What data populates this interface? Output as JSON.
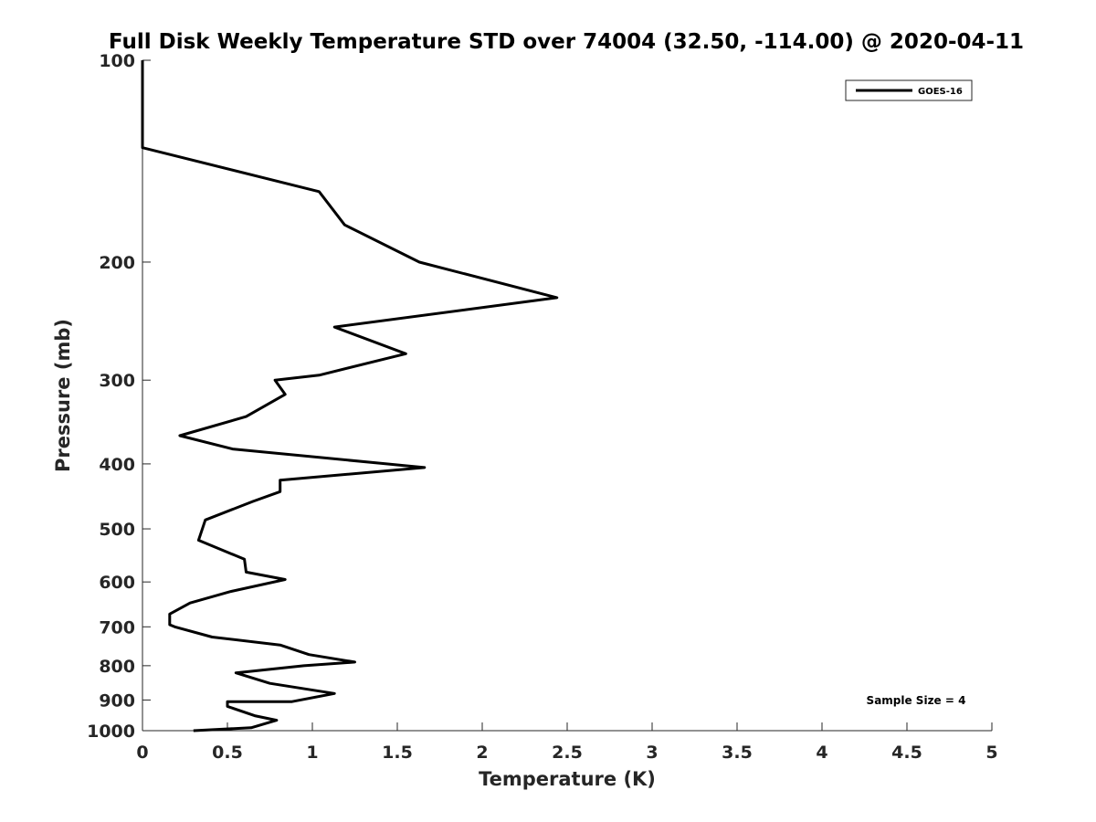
{
  "chart_data": {
    "type": "line",
    "title": "Full Disk Weekly Temperature STD over 74004 (32.50, -114.00) @ 2020-04-11",
    "xlabel": "Temperature (K)",
    "ylabel": "Pressure (mb)",
    "xlim": [
      0,
      5
    ],
    "ylim": [
      100,
      1000
    ],
    "y_scale": "log",
    "y_reversed": true,
    "grid": false,
    "legend_position": "top-right",
    "x_ticks": [
      "0",
      "0.5",
      "1",
      "1.5",
      "2",
      "2.5",
      "3",
      "3.5",
      "4",
      "4.5",
      "5"
    ],
    "y_ticks": [
      "100",
      "200",
      "300",
      "400",
      "500",
      "600",
      "700",
      "800",
      "900",
      "1000"
    ],
    "series": [
      {
        "name": "GOES-16",
        "color": "#000000",
        "x": [
          0,
          0,
          1.04,
          1.19,
          1.63,
          2.44,
          1.13,
          1.55,
          1.04,
          0.78,
          0.84,
          0.61,
          0.22,
          0.53,
          1.66,
          0.81,
          0.81,
          0.65,
          0.37,
          0.33,
          0.6,
          0.61,
          0.84,
          0.52,
          0.28,
          0.16,
          0.16,
          0.19,
          0.41,
          0.81,
          0.98,
          1.25,
          0.95,
          0.55,
          0.75,
          1.13,
          0.88,
          0.5,
          0.5,
          0.66,
          0.79,
          0.64,
          0.3
        ],
        "y": [
          100,
          135,
          157,
          176,
          200,
          226,
          250,
          274,
          295,
          300,
          315,
          340,
          363,
          380,
          405,
          423,
          440,
          455,
          485,
          520,
          555,
          580,
          595,
          620,
          645,
          670,
          695,
          700,
          725,
          745,
          770,
          790,
          800,
          820,
          850,
          880,
          905,
          905,
          920,
          950,
          965,
          990,
          1000
        ]
      }
    ],
    "annotations": {
      "sample_size": "Sample Size = 4"
    }
  }
}
